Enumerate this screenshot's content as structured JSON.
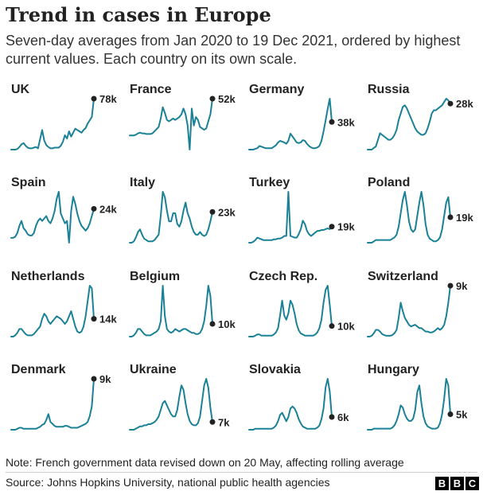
{
  "title": "Trend in cases in Europe",
  "subtitle": "Seven-day averages from Jan 2020 to 19 Dec 2021, ordered by highest current values. Each country on its own scale.",
  "note": "Note: French government data revised down on 20 May, affecting rolling average",
  "source": "Source: Johns Hopkins University, national public health agencies",
  "logo": [
    "B",
    "B",
    "C"
  ],
  "colors": {
    "line": "#1a8196",
    "dot": "#222222",
    "text": "#222222"
  },
  "chart_data": {
    "type": "line",
    "layout": "small-multiples",
    "x_range": [
      "Jan 2020",
      "19 Dec 2021"
    ],
    "grid": false,
    "panels": [
      {
        "name": "UK",
        "current_label": "78k",
        "values": [
          0,
          0,
          0,
          1,
          4,
          8,
          10,
          6,
          3,
          2,
          2,
          3,
          4,
          2,
          16,
          30,
          14,
          7,
          4,
          2,
          2,
          3,
          3,
          3,
          6,
          12,
          22,
          17,
          28,
          20,
          26,
          32,
          30,
          28,
          26,
          30,
          33,
          40,
          45,
          50,
          78
        ]
      },
      {
        "name": "France",
        "current_label": "52k",
        "values": [
          0,
          0,
          0,
          1,
          3,
          4,
          3,
          3,
          2,
          2,
          2,
          3,
          6,
          9,
          12,
          24,
          40,
          32,
          22,
          20,
          22,
          24,
          22,
          24,
          26,
          30,
          38,
          30,
          14,
          -20,
          38,
          14,
          26,
          22,
          12,
          10,
          8,
          10,
          20,
          30,
          52
        ]
      },
      {
        "name": "Germany",
        "current_label": "38k",
        "values": [
          0,
          0,
          0,
          1,
          2,
          5,
          4,
          3,
          2,
          2,
          2,
          2,
          4,
          6,
          10,
          12,
          11,
          10,
          8,
          12,
          22,
          18,
          14,
          10,
          9,
          10,
          13,
          12,
          8,
          5,
          3,
          2,
          2,
          3,
          5,
          12,
          25,
          40,
          56,
          70,
          38
        ]
      },
      {
        "name": "Russia",
        "current_label": "28k",
        "values": [
          0,
          0,
          0,
          1,
          2,
          6,
          10,
          9,
          8,
          7,
          6,
          6,
          7,
          9,
          12,
          18,
          22,
          26,
          27,
          25,
          22,
          19,
          16,
          13,
          11,
          10,
          9,
          9,
          10,
          13,
          17,
          22,
          24,
          24,
          25,
          26,
          27,
          29,
          31,
          30,
          28
        ]
      },
      {
        "name": "Spain",
        "current_label": "24k",
        "values": [
          0,
          0,
          1,
          4,
          10,
          14,
          8,
          6,
          3,
          2,
          2,
          4,
          10,
          14,
          16,
          14,
          16,
          18,
          14,
          12,
          16,
          22,
          32,
          38,
          20,
          16,
          12,
          14,
          -4,
          22,
          34,
          28,
          20,
          14,
          10,
          8,
          6,
          8,
          12,
          18,
          24
        ]
      },
      {
        "name": "Italy",
        "current_label": "23k",
        "values": [
          0,
          0,
          1,
          4,
          8,
          10,
          6,
          3,
          2,
          1,
          1,
          1,
          2,
          4,
          6,
          20,
          38,
          34,
          24,
          16,
          16,
          22,
          22,
          14,
          12,
          16,
          24,
          30,
          22,
          18,
          12,
          8,
          6,
          6,
          8,
          6,
          5,
          6,
          10,
          16,
          23
        ]
      },
      {
        "name": "Turkey",
        "current_label": "19k",
        "values": [
          0,
          0,
          1,
          3,
          6,
          5,
          4,
          3,
          3,
          3,
          3,
          3,
          4,
          4,
          5,
          5,
          6,
          8,
          8,
          60,
          8,
          7,
          6,
          6,
          10,
          16,
          26,
          22,
          14,
          10,
          8,
          10,
          12,
          14,
          14,
          15,
          15,
          16,
          17,
          16,
          19
        ]
      },
      {
        "name": "Poland",
        "current_label": "19k",
        "values": [
          0,
          0,
          0,
          1,
          2,
          2,
          2,
          2,
          2,
          2,
          2,
          2,
          3,
          4,
          6,
          12,
          22,
          32,
          38,
          28,
          16,
          10,
          8,
          10,
          20,
          30,
          38,
          28,
          14,
          6,
          3,
          2,
          1,
          1,
          2,
          4,
          10,
          20,
          30,
          34,
          19
        ]
      },
      {
        "name": "Netherlands",
        "current_label": "14k",
        "values": [
          0,
          0,
          1,
          3,
          6,
          6,
          4,
          2,
          1,
          1,
          1,
          2,
          4,
          6,
          8,
          14,
          18,
          16,
          12,
          10,
          12,
          14,
          16,
          15,
          14,
          12,
          10,
          12,
          16,
          20,
          14,
          8,
          4,
          3,
          4,
          8,
          16,
          28,
          40,
          38,
          14
        ]
      },
      {
        "name": "Belgium",
        "current_label": "10k",
        "values": [
          0,
          0,
          1,
          3,
          6,
          6,
          4,
          2,
          1,
          1,
          1,
          2,
          3,
          4,
          6,
          12,
          40,
          16,
          6,
          4,
          3,
          4,
          6,
          5,
          4,
          5,
          6,
          6,
          5,
          4,
          3,
          3,
          2,
          2,
          3,
          6,
          12,
          24,
          40,
          32,
          10
        ]
      },
      {
        "name": "Czech Rep.",
        "current_label": "10k",
        "values": [
          0,
          0,
          0,
          1,
          2,
          2,
          1,
          1,
          1,
          1,
          1,
          1,
          2,
          4,
          8,
          20,
          34,
          20,
          16,
          22,
          34,
          30,
          22,
          12,
          6,
          3,
          2,
          1,
          1,
          1,
          1,
          1,
          2,
          4,
          8,
          16,
          32,
          44,
          48,
          30,
          10
        ]
      },
      {
        "name": "Switzerland",
        "current_label": "9k",
        "values": [
          0,
          0,
          1,
          4,
          8,
          8,
          6,
          3,
          2,
          1,
          1,
          1,
          2,
          4,
          8,
          22,
          40,
          30,
          22,
          18,
          14,
          12,
          13,
          14,
          12,
          10,
          10,
          8,
          6,
          6,
          5,
          5,
          6,
          8,
          10,
          8,
          10,
          14,
          24,
          40,
          60
        ]
      },
      {
        "name": "Denmark",
        "current_label": "9k",
        "values": [
          0,
          0,
          0,
          1,
          2,
          2,
          1,
          1,
          1,
          1,
          1,
          1,
          1,
          2,
          3,
          5,
          6,
          10,
          16,
          8,
          6,
          4,
          3,
          3,
          3,
          3,
          4,
          4,
          3,
          2,
          2,
          2,
          2,
          3,
          4,
          5,
          6,
          8,
          14,
          24,
          52
        ]
      },
      {
        "name": "Ukraine",
        "current_label": "7k",
        "values": [
          0,
          0,
          0,
          1,
          2,
          3,
          3,
          4,
          4,
          5,
          5,
          6,
          7,
          9,
          12,
          18,
          24,
          26,
          22,
          18,
          14,
          12,
          12,
          18,
          30,
          40,
          36,
          24,
          14,
          8,
          5,
          4,
          4,
          6,
          12,
          26,
          40,
          46,
          38,
          20,
          7
        ]
      },
      {
        "name": "Slovakia",
        "current_label": "6k",
        "values": [
          0,
          0,
          0,
          1,
          1,
          1,
          1,
          1,
          1,
          1,
          1,
          1,
          2,
          4,
          8,
          14,
          16,
          12,
          8,
          12,
          20,
          22,
          20,
          16,
          10,
          6,
          3,
          2,
          1,
          1,
          1,
          1,
          1,
          2,
          4,
          10,
          20,
          40,
          48,
          36,
          12
        ]
      },
      {
        "name": "Hungary",
        "current_label": "5k",
        "values": [
          0,
          0,
          0,
          1,
          1,
          1,
          1,
          1,
          1,
          1,
          1,
          1,
          2,
          4,
          8,
          14,
          22,
          20,
          14,
          10,
          8,
          8,
          10,
          18,
          34,
          40,
          24,
          12,
          6,
          3,
          2,
          1,
          1,
          1,
          2,
          6,
          14,
          28,
          46,
          40,
          14
        ]
      }
    ]
  }
}
